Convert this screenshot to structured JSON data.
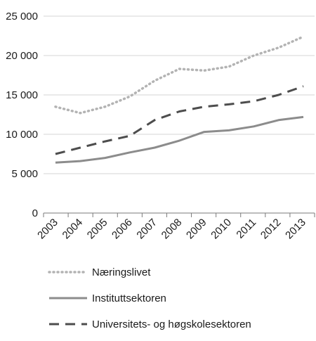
{
  "chart_data": {
    "type": "line",
    "categories": [
      "2003",
      "2004",
      "2005",
      "2006",
      "2007",
      "2008",
      "2009",
      "2010",
      "2011",
      "2012",
      "2013"
    ],
    "ylim": [
      0,
      25000
    ],
    "yticks": [
      0,
      5000,
      10000,
      15000,
      20000,
      25000
    ],
    "ytick_labels": [
      "0",
      "5 000",
      "10 000",
      "15 000",
      "20 000",
      "25 000"
    ],
    "grid": "horizontal",
    "legend_position": "bottom",
    "series": [
      {
        "name": "Næringslivet",
        "color": "#b3b3b3",
        "style": "dotted",
        "values": [
          13500,
          12700,
          13500,
          14800,
          16800,
          18300,
          18100,
          18600,
          20000,
          21000,
          22400
        ]
      },
      {
        "name": "Instituttsektoren",
        "color": "#8c8c8c",
        "style": "solid",
        "values": [
          6400,
          6600,
          7000,
          7700,
          8300,
          9200,
          10300,
          10500,
          11000,
          11800,
          12200
        ]
      },
      {
        "name": "Universitets- og høgskolesektoren",
        "color": "#4d4d4d",
        "style": "dashed",
        "values": [
          7500,
          8300,
          9100,
          9800,
          11800,
          12900,
          13500,
          13800,
          14200,
          15000,
          16100
        ]
      }
    ]
  }
}
